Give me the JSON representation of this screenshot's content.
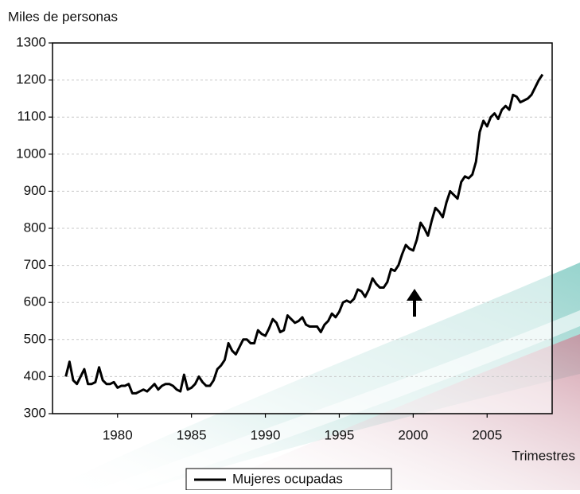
{
  "chart_data": {
    "type": "line",
    "y_axis_title": "Miles de personas",
    "x_axis_title": "Trimestres",
    "x": [
      1976.5,
      1976.75,
      1977,
      1977.25,
      1977.5,
      1977.75,
      1978,
      1978.25,
      1978.5,
      1978.75,
      1979,
      1979.25,
      1979.5,
      1979.75,
      1980,
      1980.25,
      1980.5,
      1980.75,
      1981,
      1981.25,
      1981.5,
      1981.75,
      1982,
      1982.25,
      1982.5,
      1982.75,
      1983,
      1983.25,
      1983.5,
      1983.75,
      1984,
      1984.25,
      1984.5,
      1984.75,
      1985,
      1985.25,
      1985.5,
      1985.75,
      1986,
      1986.25,
      1986.5,
      1986.75,
      1987,
      1987.25,
      1987.5,
      1987.75,
      1988,
      1988.25,
      1988.5,
      1988.75,
      1989,
      1989.25,
      1989.5,
      1989.75,
      1990,
      1990.25,
      1990.5,
      1990.75,
      1991,
      1991.25,
      1991.5,
      1991.75,
      1992,
      1992.25,
      1992.5,
      1992.75,
      1993,
      1993.25,
      1993.5,
      1993.75,
      1994,
      1994.25,
      1994.5,
      1994.75,
      1995,
      1995.25,
      1995.5,
      1995.75,
      1996,
      1996.25,
      1996.5,
      1996.75,
      1997,
      1997.25,
      1997.5,
      1997.75,
      1998,
      1998.25,
      1998.5,
      1998.75,
      1999,
      1999.25,
      1999.5,
      1999.75,
      2000,
      2000.25,
      2000.5,
      2000.75,
      2001,
      2001.25,
      2001.5,
      2001.75,
      2002,
      2002.25,
      2002.5,
      2002.75,
      2003,
      2003.25,
      2003.5,
      2003.75,
      2004,
      2004.25,
      2004.5,
      2004.75,
      2005,
      2005.25,
      2005.5,
      2005.75,
      2006,
      2006.25,
      2006.5,
      2006.75,
      2007,
      2007.25,
      2007.5,
      2007.75,
      2008,
      2008.25,
      2008.5,
      2008.75
    ],
    "series": [
      {
        "name": "Mujeres ocupadas",
        "color": "#000000",
        "values": [
          400,
          440,
          390,
          380,
          400,
          420,
          380,
          380,
          385,
          425,
          390,
          380,
          380,
          385,
          370,
          375,
          375,
          380,
          355,
          355,
          360,
          365,
          360,
          370,
          380,
          365,
          375,
          380,
          380,
          375,
          365,
          360,
          405,
          365,
          370,
          380,
          400,
          385,
          375,
          375,
          390,
          420,
          430,
          445,
          490,
          470,
          460,
          480,
          500,
          500,
          490,
          490,
          525,
          515,
          510,
          530,
          555,
          545,
          520,
          525,
          565,
          555,
          545,
          550,
          560,
          540,
          535,
          535,
          535,
          520,
          540,
          550,
          570,
          560,
          575,
          600,
          605,
          600,
          610,
          635,
          630,
          615,
          635,
          665,
          650,
          640,
          640,
          655,
          690,
          685,
          700,
          730,
          755,
          745,
          740,
          770,
          815,
          800,
          780,
          820,
          855,
          845,
          830,
          870,
          900,
          890,
          880,
          925,
          940,
          935,
          945,
          980,
          1060,
          1090,
          1075,
          1100,
          1110,
          1095,
          1120,
          1130,
          1120,
          1160,
          1155,
          1140,
          1145,
          1150,
          1160,
          1180,
          1200,
          1215
        ]
      }
    ],
    "xlim": [
      1975.6,
      2009.4
    ],
    "xticks": [
      1980,
      1985,
      1990,
      1995,
      2000,
      2005
    ],
    "ylim": [
      300,
      1300
    ],
    "yticks": [
      300,
      400,
      500,
      600,
      700,
      800,
      900,
      1000,
      1100,
      1200,
      1300
    ],
    "grid": true,
    "legend": "bottom"
  }
}
